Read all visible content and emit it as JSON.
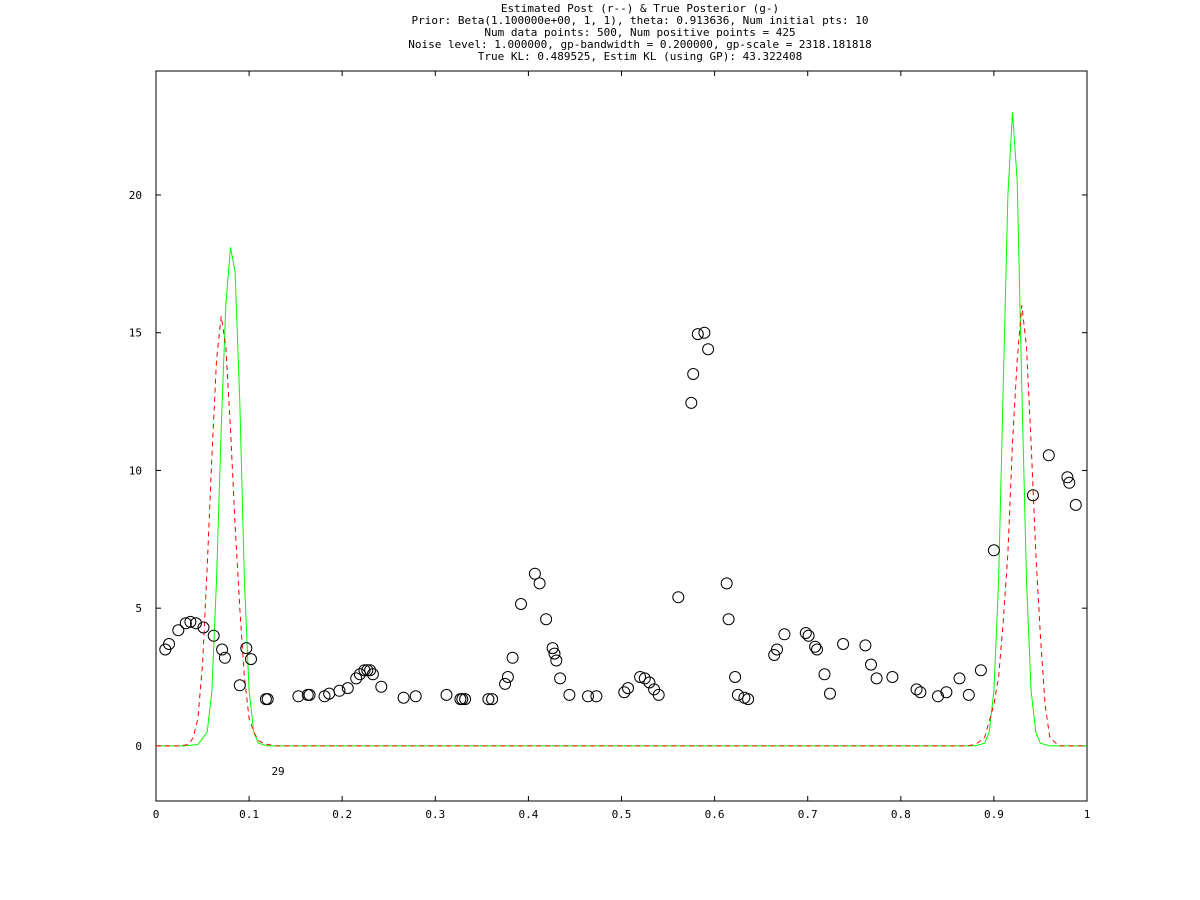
{
  "chart_data": {
    "type": "line",
    "title": "Estimated Post (r--) & True Posterior (g-)",
    "title_lines": [
      "Estimated Post (r--) & True Posterior (g-)",
      "Prior: Beta(1.100000e+00, 1, 1), theta: 0.913636, Num initial pts: 10",
      "Num data points: 500, Num positive points = 425",
      "Noise level: 1.000000, gp-bandwidth  = 0.200000, gp-scale = 2318.181818",
      "True KL: 0.489525, Estim KL (using GP): 43.322408"
    ],
    "xlabel": "",
    "ylabel": "",
    "xlim": [
      0,
      1
    ],
    "ylim": [
      -2,
      24.5
    ],
    "grid": false,
    "x_ticks": [
      0,
      0.1,
      0.2,
      0.3,
      0.4,
      0.5,
      0.6,
      0.7,
      0.8,
      0.9,
      1
    ],
    "x_tick_labels": [
      "0",
      "0.1",
      "0.2",
      "0.3",
      "0.4",
      "0.5",
      "0.6",
      "0.7",
      "0.8",
      "0.9",
      "1"
    ],
    "y_ticks": [
      0,
      5,
      10,
      15,
      20
    ],
    "y_tick_labels": [
      "0",
      "5",
      "10",
      "15",
      "20"
    ],
    "colors": {
      "true_posterior": "#00ff00",
      "estimated_posterior": "#ff0000",
      "points": "#000000",
      "axes": "#000000"
    },
    "series": [
      {
        "style": "solid",
        "color": "#00ff00",
        "x": [
          0,
          0.03,
          0.045,
          0.055,
          0.06,
          0.065,
          0.07,
          0.075,
          0.08,
          0.085,
          0.09,
          0.095,
          0.1,
          0.105,
          0.11,
          0.12,
          0.13,
          0.88,
          0.89,
          0.895,
          0.9,
          0.905,
          0.91,
          0.915,
          0.92,
          0.925,
          0.93,
          0.935,
          0.94,
          0.945,
          0.95,
          0.96,
          1
        ],
        "y": [
          0,
          0,
          0.05,
          0.5,
          2,
          6,
          11.5,
          16,
          18.1,
          17.2,
          12.5,
          6,
          2,
          0.5,
          0.1,
          0,
          0,
          0,
          0.1,
          0.5,
          2,
          6,
          13,
          20,
          23,
          20.5,
          13,
          6,
          2,
          0.5,
          0.1,
          0,
          0
        ]
      },
      {
        "style": "dashed",
        "color": "#ff0000",
        "x": [
          0,
          0.025,
          0.035,
          0.04,
          0.045,
          0.05,
          0.055,
          0.06,
          0.065,
          0.07,
          0.075,
          0.08,
          0.085,
          0.09,
          0.095,
          0.1,
          0.105,
          0.11,
          0.115,
          0.12,
          0.13,
          0.87,
          0.88,
          0.89,
          0.9,
          0.905,
          0.91,
          0.915,
          0.92,
          0.925,
          0.93,
          0.935,
          0.94,
          0.945,
          0.95,
          0.955,
          0.96,
          0.97,
          1
        ],
        "y": [
          0,
          0,
          0.05,
          0.3,
          1,
          3,
          6.5,
          10.5,
          14,
          15.6,
          14.5,
          11.5,
          8,
          5,
          2.5,
          1,
          0.5,
          0.2,
          0.1,
          0.05,
          0,
          0,
          0.05,
          0.3,
          1.5,
          2.5,
          4.5,
          7,
          11,
          14,
          16,
          14.5,
          11,
          7,
          4,
          1.5,
          0.3,
          0,
          0
        ]
      }
    ],
    "points": {
      "marker": "circle",
      "x": [
        0.01,
        0.014,
        0.024,
        0.032,
        0.037,
        0.043,
        0.051,
        0.062,
        0.071,
        0.074,
        0.09,
        0.097,
        0.102,
        0.118,
        0.12,
        0.153,
        0.163,
        0.165,
        0.181,
        0.186,
        0.197,
        0.206,
        0.215,
        0.219,
        0.224,
        0.227,
        0.23,
        0.233,
        0.242,
        0.266,
        0.279,
        0.312,
        0.327,
        0.329,
        0.332,
        0.357,
        0.361,
        0.375,
        0.378,
        0.383,
        0.392,
        0.407,
        0.412,
        0.419,
        0.426,
        0.428,
        0.43,
        0.434,
        0.444,
        0.464,
        0.473,
        0.503,
        0.507,
        0.52,
        0.525,
        0.53,
        0.535,
        0.54,
        0.561,
        0.575,
        0.577,
        0.582,
        0.589,
        0.593,
        0.613,
        0.615,
        0.622,
        0.625,
        0.632,
        0.636,
        0.664,
        0.667,
        0.675,
        0.698,
        0.701,
        0.708,
        0.71,
        0.718,
        0.724,
        0.738,
        0.762,
        0.768,
        0.774,
        0.791,
        0.817,
        0.821,
        0.84,
        0.849,
        0.863,
        0.873,
        0.886,
        0.9,
        0.942,
        0.959,
        0.979,
        0.981,
        0.988
      ],
      "y": [
        3.5,
        3.7,
        4.2,
        4.45,
        4.5,
        4.45,
        4.3,
        4.0,
        3.5,
        3.2,
        2.2,
        3.55,
        3.15,
        1.7,
        1.7,
        1.8,
        1.85,
        1.85,
        1.8,
        1.9,
        2.0,
        2.1,
        2.45,
        2.6,
        2.75,
        2.75,
        2.75,
        2.6,
        2.15,
        1.75,
        1.8,
        1.85,
        1.7,
        1.7,
        1.7,
        1.7,
        1.7,
        2.25,
        2.5,
        3.2,
        5.15,
        6.25,
        5.9,
        4.6,
        3.55,
        3.35,
        3.1,
        2.45,
        1.85,
        1.8,
        1.8,
        1.95,
        2.1,
        2.5,
        2.45,
        2.3,
        2.05,
        1.85,
        5.4,
        12.45,
        13.5,
        14.95,
        15.0,
        14.4,
        5.9,
        4.6,
        2.5,
        1.85,
        1.75,
        1.7,
        3.3,
        3.5,
        4.05,
        4.1,
        4.0,
        3.6,
        3.5,
        2.6,
        1.9,
        3.7,
        3.65,
        2.95,
        2.45,
        2.5,
        2.05,
        1.95,
        1.8,
        1.95,
        2.45,
        1.85,
        2.75,
        7.1,
        9.1,
        10.55,
        9.75,
        9.55,
        8.75
      ]
    },
    "annotations": [
      {
        "text": "29",
        "x": 0.124,
        "y": -1.05
      }
    ]
  }
}
